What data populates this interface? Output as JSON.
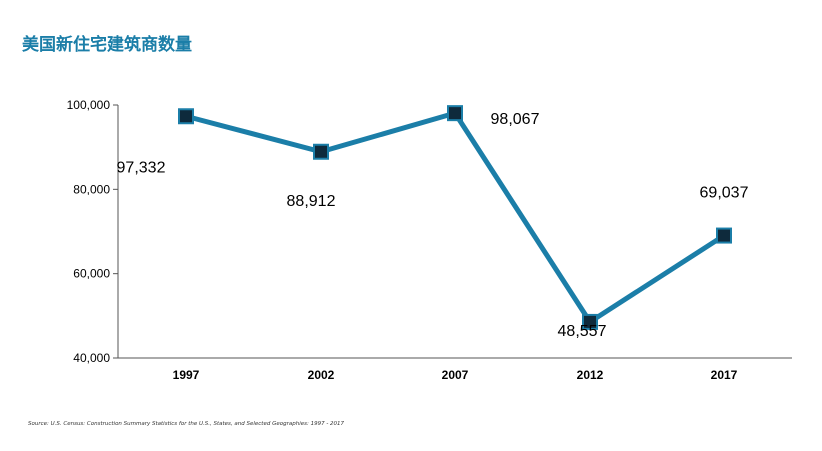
{
  "title": "美国新住宅建筑商数量",
  "source": "Source: U.S. Census: Construction Summary Statistics for the U.S., States, and Selected Geographies: 1997 - 2017",
  "chart_data": {
    "type": "line",
    "title": "美国新住宅建筑商数量",
    "xlabel": "",
    "ylabel": "",
    "categories": [
      "1997",
      "2002",
      "2007",
      "2012",
      "2017"
    ],
    "series": [
      {
        "values": [
          97332,
          88912,
          98067,
          48557,
          69037
        ]
      }
    ],
    "data_labels": [
      "97,332",
      "88,912",
      "98,067",
      "48,557",
      "69,037"
    ],
    "ylim": [
      40000,
      100000
    ],
    "yticks": [
      40000,
      60000,
      80000,
      100000
    ],
    "ytick_labels": [
      "40,000",
      "60,000",
      "80,000",
      "100,000"
    ],
    "grid": false,
    "legend": "none",
    "colors": {
      "line": "#1b7ea8",
      "marker_fill": "#0e2a3c",
      "axis": "#555555"
    }
  }
}
